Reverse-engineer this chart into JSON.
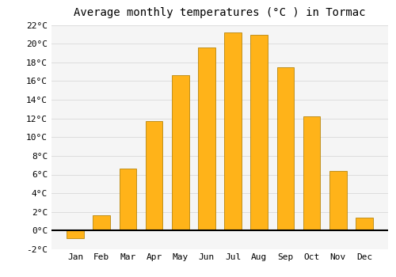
{
  "title": "Average monthly temperatures (°C ) in Tormac",
  "months": [
    "Jan",
    "Feb",
    "Mar",
    "Apr",
    "May",
    "Jun",
    "Jul",
    "Aug",
    "Sep",
    "Oct",
    "Nov",
    "Dec"
  ],
  "values": [
    -0.8,
    1.6,
    6.6,
    11.7,
    16.6,
    19.6,
    21.2,
    20.9,
    17.5,
    12.2,
    6.4,
    1.4
  ],
  "bar_color": "#FFB319",
  "bar_edge_color": "#B8860B",
  "background_color": "#FFFFFF",
  "plot_bg_color": "#F5F5F5",
  "grid_color": "#DDDDDD",
  "ylim": [
    -2,
    22
  ],
  "yticks": [
    -2,
    0,
    2,
    4,
    6,
    8,
    10,
    12,
    14,
    16,
    18,
    20,
    22
  ],
  "ytick_labels": [
    "-2°C",
    "0°C",
    "2°C",
    "4°C",
    "6°C",
    "8°C",
    "10°C",
    "12°C",
    "14°C",
    "16°C",
    "18°C",
    "20°C",
    "22°C"
  ],
  "title_fontsize": 10,
  "tick_fontsize": 8,
  "font_family": "monospace",
  "bar_width": 0.65
}
